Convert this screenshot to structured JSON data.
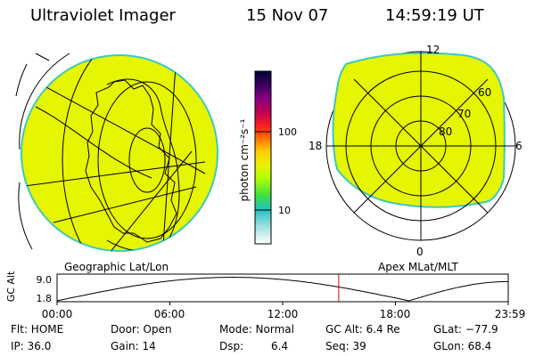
{
  "header": {
    "title": "Ultraviolet Imager",
    "date": "15 Nov 07",
    "time": "14:59:19 UT"
  },
  "colorbar": {
    "label": "photon cm⁻²s⁻¹",
    "ticks": [
      "100",
      "10"
    ],
    "colors": [
      "#000033",
      "#3a0060",
      "#8a0080",
      "#c00050",
      "#ff2020",
      "#ff8000",
      "#ffd000",
      "#ecf000",
      "#b0ff00",
      "#40e040",
      "#20c0c0",
      "#a0e0e0",
      "#ffffff"
    ]
  },
  "left_panel": {
    "caption": "Geographic Lat/Lon",
    "fill_color": "#e6f500",
    "edge_color": "#40c8c0"
  },
  "right_panel": {
    "caption": "Apex MLat/MLT",
    "mlt_labels": {
      "top": "12",
      "bottom": "0",
      "left": "18",
      "right": "6"
    },
    "lat_labels": [
      "60",
      "70",
      "80"
    ],
    "fill_color": "#e6f500",
    "edge_color": "#40c8c0"
  },
  "altitude_plot": {
    "ylabel": "GC Alt",
    "yticks": [
      "9.0",
      "1.8"
    ],
    "xticks": [
      "00:00",
      "06:00",
      "12:00",
      "18:00",
      "23:59"
    ],
    "marker_time": "14:59",
    "marker_color": "#e00000"
  },
  "status": {
    "flt": "Flt: HOME",
    "door": "Door: Open",
    "mode": "Mode: Normal",
    "gcalt": "GC Alt: 6.4 Re",
    "glat": "GLat: −77.9",
    "ip": "IP: 36.0",
    "gain": "Gain: 14",
    "dsp_label": "Dsp:",
    "dsp_value": "6.4",
    "seq": "Seq: 39",
    "glon": "GLon: 68.4"
  }
}
